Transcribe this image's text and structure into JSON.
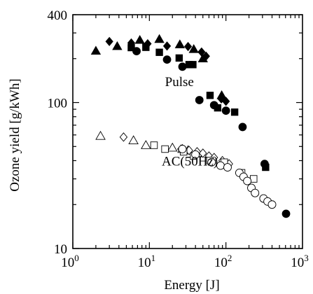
{
  "chart_data": {
    "type": "scatter",
    "title": "",
    "xlabel": "Energy  [J]",
    "ylabel": "Ozone yield  [g/kWh]",
    "x_scale": "log",
    "y_scale": "log",
    "xlim": [
      1,
      1000
    ],
    "ylim": [
      10,
      400
    ],
    "x_ticks": [
      {
        "value": 1,
        "base": "10",
        "exp": "0"
      },
      {
        "value": 10,
        "base": "10",
        "exp": "1"
      },
      {
        "value": 100,
        "base": "10",
        "exp": "2"
      },
      {
        "value": 1000,
        "base": "10",
        "exp": "3"
      }
    ],
    "y_ticks": [
      {
        "value": 10,
        "label": "10"
      },
      {
        "value": 100,
        "label": "100"
      },
      {
        "value": 400,
        "label": "400"
      }
    ],
    "grid": false,
    "annotations": [
      {
        "text": "Pulse",
        "x": 16,
        "y": 130
      },
      {
        "text": "AC(50Hz)",
        "x": 14.5,
        "y": 37
      }
    ],
    "series": [
      {
        "marker": "triangle",
        "filled": true,
        "points": [
          [
            2.0,
            226
          ],
          [
            3.8,
            243
          ],
          [
            7.5,
            268
          ],
          [
            13.5,
            272
          ],
          [
            25,
            250
          ],
          [
            38,
            232
          ],
          [
            50,
            200
          ],
          [
            88,
            112
          ]
        ]
      },
      {
        "marker": "diamond",
        "filled": true,
        "points": [
          [
            3.0,
            262
          ],
          [
            5.8,
            256
          ],
          [
            9.5,
            253
          ],
          [
            17,
            244
          ],
          [
            32,
            242
          ],
          [
            48,
            222
          ],
          [
            55,
            208
          ],
          [
            87,
            106
          ],
          [
            100,
            102
          ]
        ]
      },
      {
        "marker": "square",
        "filled": true,
        "points": [
          [
            5.8,
            238
          ],
          [
            9.0,
            239
          ],
          [
            13.5,
            221
          ],
          [
            24.5,
            202
          ],
          [
            33,
            182
          ],
          [
            37,
            182
          ],
          [
            62,
            112
          ],
          [
            78,
            92
          ],
          [
            130,
            86
          ],
          [
            330,
            36
          ]
        ]
      },
      {
        "marker": "circle",
        "filled": true,
        "points": [
          [
            6.8,
            225
          ],
          [
            17,
            197
          ],
          [
            27,
            176
          ],
          [
            45,
            104
          ],
          [
            70,
            96
          ],
          [
            100,
            88
          ],
          [
            165,
            68
          ],
          [
            320,
            38
          ],
          [
            610,
            17.3
          ]
        ]
      },
      {
        "marker": "triangle",
        "filled": false,
        "points": [
          [
            2.3,
            59
          ],
          [
            6.2,
            55
          ],
          [
            9.0,
            51
          ],
          [
            20,
            49
          ],
          [
            27,
            48
          ],
          [
            32,
            47
          ],
          [
            42,
            45
          ]
        ]
      },
      {
        "marker": "diamond",
        "filled": false,
        "points": [
          [
            4.6,
            58
          ],
          [
            26,
            48
          ],
          [
            33,
            47
          ],
          [
            42,
            46
          ],
          [
            50,
            45
          ],
          [
            60,
            43
          ],
          [
            70,
            42
          ],
          [
            90,
            40
          ],
          [
            110,
            38
          ]
        ]
      },
      {
        "marker": "square",
        "filled": false,
        "points": [
          [
            11.5,
            51
          ],
          [
            16,
            48
          ],
          [
            28,
            46
          ],
          [
            38,
            43
          ],
          [
            62,
            40
          ],
          [
            95,
            39
          ],
          [
            160,
            33
          ],
          [
            230,
            30
          ]
        ]
      },
      {
        "marker": "circle",
        "filled": false,
        "points": [
          [
            27,
            48
          ],
          [
            40,
            44
          ],
          [
            65,
            39
          ],
          [
            85,
            37
          ],
          [
            105,
            36
          ],
          [
            150,
            33
          ],
          [
            170,
            31
          ],
          [
            190,
            29
          ],
          [
            215,
            26
          ],
          [
            240,
            24
          ],
          [
            310,
            22
          ],
          [
            350,
            21
          ],
          [
            400,
            20
          ]
        ]
      }
    ]
  }
}
